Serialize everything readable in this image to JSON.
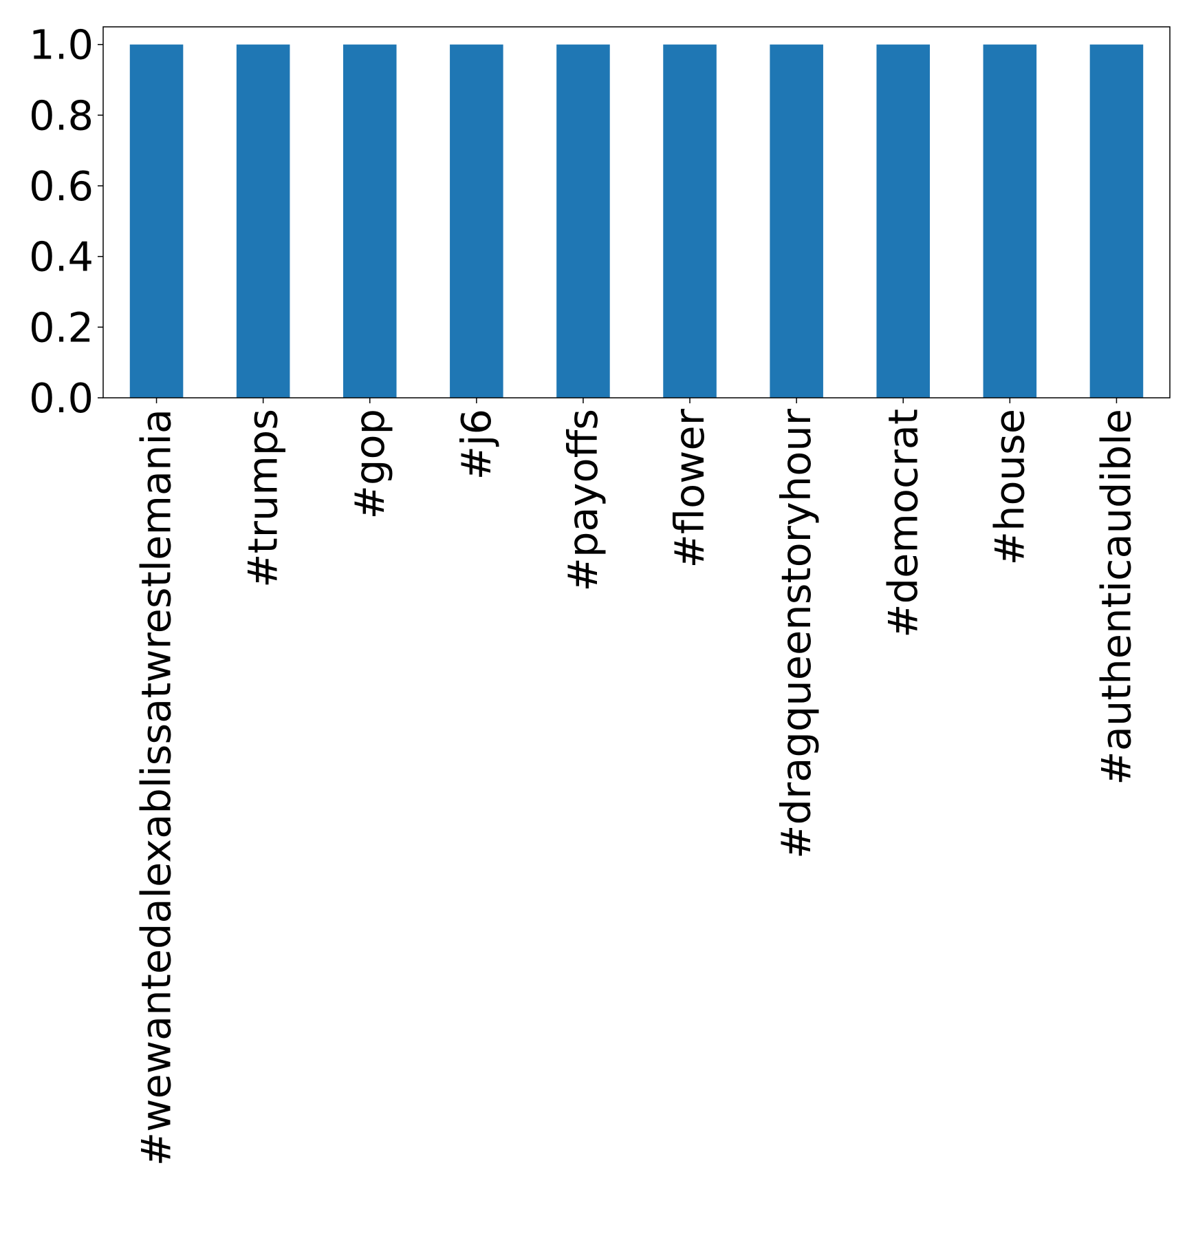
{
  "chart_data": {
    "type": "bar",
    "title": "",
    "xlabel": "",
    "ylabel": "",
    "categories": [
      "#wewantedalexablissatwrestlemania",
      "#trumps",
      "#gop",
      "#j6",
      "#payoffs",
      "#flower",
      "#dragqueenstoryhour",
      "#democrat",
      "#house",
      "#authenticaudible"
    ],
    "values": [
      1.0,
      1.0,
      1.0,
      1.0,
      1.0,
      1.0,
      1.0,
      1.0,
      1.0,
      1.0
    ],
    "ylim": [
      0,
      1.05
    ],
    "yticks": [
      {
        "value": 0.0,
        "label": "0.0"
      },
      {
        "value": 0.2,
        "label": "0.2"
      },
      {
        "value": 0.4,
        "label": "0.4"
      },
      {
        "value": 0.6,
        "label": "0.6"
      },
      {
        "value": 0.8,
        "label": "0.8"
      },
      {
        "value": 1.0,
        "label": "1.0"
      }
    ],
    "bar_color": "#1f77b4",
    "grid": false,
    "legend": "none",
    "x_tick_rotation": "vertical"
  }
}
